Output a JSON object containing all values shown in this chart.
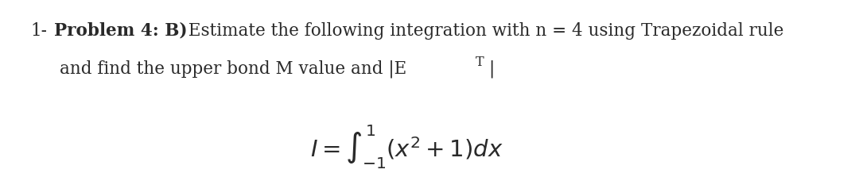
{
  "background_color": "#ffffff",
  "text_color": "#2a2a2a",
  "font_size_main": 15.5,
  "font_size_formula": 21,
  "line1_num": "1-",
  "line1_bold": "Problem 4: B)",
  "line1_rest": " Estimate the following integration with n = 4 using Trapezoidal rule",
  "line2_text": "and find the upper bond M value and |E",
  "line2_sub": "T",
  "line2_end": "|",
  "formula": "$I=\\int_{-1}^{1}(x^2 + 1)dx$"
}
